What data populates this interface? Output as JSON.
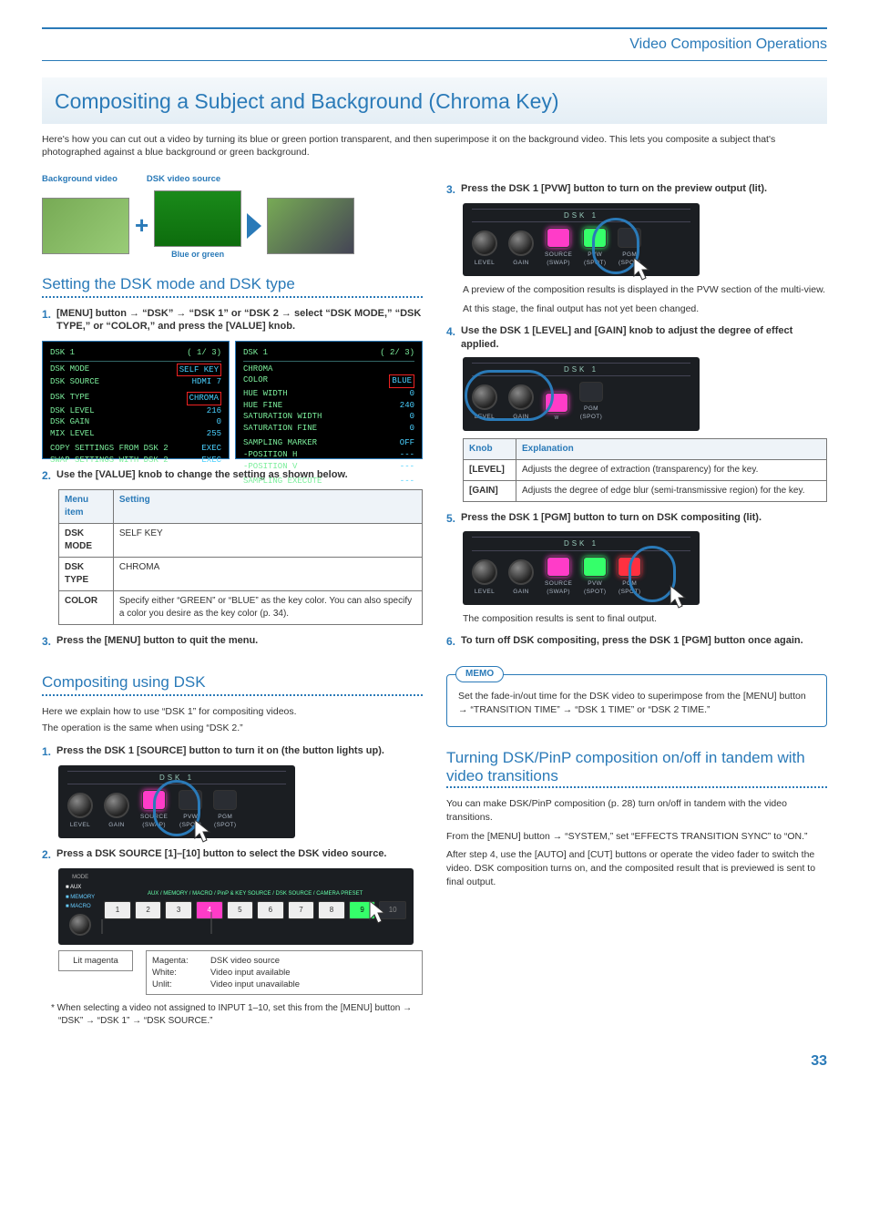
{
  "breadcrumb": "Video Composition Operations",
  "page_title": "Compositing a Subject and Background (Chroma Key)",
  "intro": "Here's how you can cut out a video by turning its blue or green portion transparent, and then superimpose it on the background video. This lets you composite a subject that's photographed against a blue background or green background.",
  "thumbs": {
    "bg_label": "Background video",
    "src_label": "DSK video source",
    "blue_green": "Blue or green"
  },
  "sec1": {
    "title": "Setting the DSK mode and DSK type",
    "step1": "[MENU] button → “DSK” → “DSK 1” or “DSK 2 → select “DSK MODE,” “DSK TYPE,” or “COLOR,” and press the [VALUE] knob.",
    "step2": "Use the [VALUE] knob to change the setting as shown below.",
    "table": {
      "head": [
        "Menu item",
        "Setting"
      ],
      "rows": [
        [
          "DSK MODE",
          "SELF KEY"
        ],
        [
          "DSK TYPE",
          "CHROMA"
        ],
        [
          "COLOR",
          "Specify either “GREEN” or “BLUE” as the key color. You can also specify a color you desire as the key color (p. 34)."
        ]
      ]
    },
    "step3": "Press the [MENU] button to quit the menu."
  },
  "menus": {
    "left": {
      "title": "DSK 1",
      "page": "( 1/ 3)",
      "rows": [
        [
          "DSK MODE",
          "SELF KEY",
          true
        ],
        [
          "DSK SOURCE",
          "HDMI 7",
          false
        ],
        [
          "",
          "",
          false
        ],
        [
          "DSK TYPE",
          "CHROMA",
          true
        ],
        [
          "DSK LEVEL",
          "216",
          false
        ],
        [
          "DSK GAIN",
          "0",
          false
        ],
        [
          "MIX LEVEL",
          "255",
          false
        ],
        [
          "",
          "",
          false
        ],
        [
          "COPY SETTINGS FROM DSK 2",
          "EXEC",
          false
        ],
        [
          "SWAP SETTINGS WITH DSK 2",
          "EXEC",
          false
        ]
      ]
    },
    "right": {
      "title": "DSK 1",
      "page": "( 2/ 3)",
      "rows": [
        [
          "CHROMA",
          "",
          false
        ],
        [
          " COLOR",
          "BLUE",
          true
        ],
        [
          " HUE WIDTH",
          "0",
          false
        ],
        [
          " HUE FINE",
          "240",
          false
        ],
        [
          " SATURATION WIDTH",
          "0",
          false
        ],
        [
          " SATURATION FINE",
          "0",
          false
        ],
        [
          "",
          "",
          false
        ],
        [
          " SAMPLING MARKER",
          "OFF",
          false
        ],
        [
          "  -POSITION H",
          "---",
          false
        ],
        [
          "  -POSITION V",
          "---",
          false
        ],
        [
          "",
          "",
          false
        ],
        [
          " SAMPLING EXECUTE",
          "---",
          false
        ]
      ]
    }
  },
  "sec2": {
    "title": "Compositing using DSK",
    "lead1": "Here we explain how to use “DSK 1” for compositing videos.",
    "lead2": "The operation is the same when using “DSK 2.”",
    "step1": "Press the DSK 1 [SOURCE] button to turn it on (the button lights up).",
    "step2": "Press a DSK SOURCE [1]–[10] button to select the DSK video source.",
    "legend": {
      "lit_magenta": "Lit magenta",
      "rows": [
        [
          "Magenta:",
          "DSK video source"
        ],
        [
          "White:",
          "Video input available"
        ],
        [
          "Unlit:",
          "Video input unavailable"
        ]
      ]
    },
    "note": "* When selecting a video not assigned to INPUT 1–10, set this from the [MENU] button → “DSK” → “DSK 1” → “DSK SOURCE.”"
  },
  "dsk_panel": {
    "title": "DSK 1",
    "labels": {
      "level": "LEVEL",
      "gain": "GAIN",
      "source": "SOURCE\n(SWAP)",
      "pvw": "PVW\n(SPOT)",
      "pgm": "PGM\n(SPOT)"
    }
  },
  "right_col": {
    "step3": "Press the DSK 1 [PVW] button to turn on the preview output (lit).",
    "step3_after1": "A preview of the composition results is displayed in the PVW section of the multi-view.",
    "step3_after2": "At this stage, the final output has not yet been changed.",
    "step4": "Use the DSK 1 [LEVEL] and [GAIN] knob to adjust the degree of effect applied.",
    "knob_table": {
      "head": [
        "Knob",
        "Explanation"
      ],
      "rows": [
        [
          "[LEVEL]",
          "Adjusts the degree of extraction (transparency) for the key."
        ],
        [
          "[GAIN]",
          "Adjusts the degree of edge blur (semi-transmissive region) for the key."
        ]
      ]
    },
    "step5": "Press the DSK 1 [PGM] button to turn on DSK compositing (lit).",
    "step5_after": "The composition results is sent to final output.",
    "step6": "To turn off DSK compositing, press the DSK 1 [PGM] button once again.",
    "memo_label": "MEMO",
    "memo": "Set the fade-in/out time for the DSK video to superimpose from the [MENU] button → “TRANSITION TIME” → “DSK 1 TIME” or “DSK 2 TIME.”"
  },
  "sec3": {
    "title": "Turning DSK/PinP composition on/off in tandem with video transitions",
    "p1": "You can make DSK/PinP composition (p. 28) turn on/off in tandem with the video transitions.",
    "p2": "From the [MENU] button → “SYSTEM,” set “EFFECTS TRANSITION SYNC” to “ON.”",
    "p3": "After step 4, use the [AUTO] and [CUT] buttons or operate the video fader to switch the video. DSK composition turns on, and the composited result that is previewed is sent to final output."
  },
  "mode_strip": {
    "header": "AUX / MEMORY / MACRO / PinP & KEY SOURCE / DSK SOURCE / CAMERA PRESET",
    "mode": "MODE"
  },
  "page_number": "33"
}
